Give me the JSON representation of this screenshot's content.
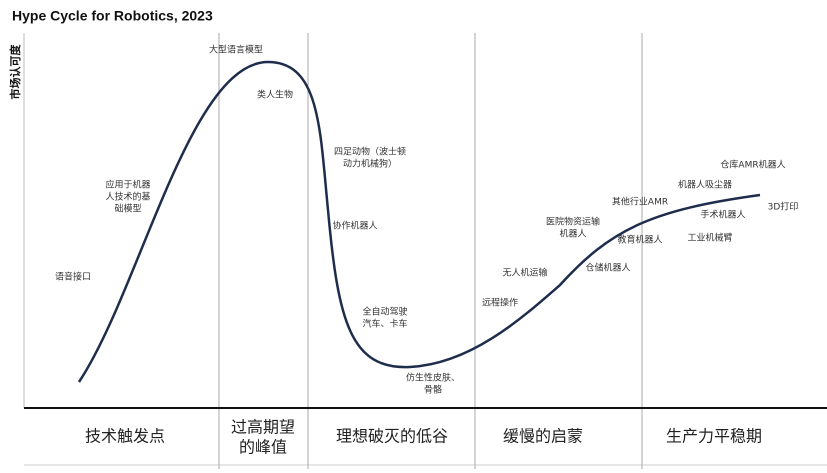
{
  "title": "Hype Cycle for Robotics, 2023",
  "y_axis_label": "市场认可度",
  "phases": [
    {
      "lines": [
        "技术触发点"
      ]
    },
    {
      "lines": [
        "过高期望",
        "的峰值"
      ]
    },
    {
      "lines": [
        "理想破灭的低谷"
      ]
    },
    {
      "lines": [
        "缓慢的启蒙"
      ]
    },
    {
      "lines": [
        "生产力平稳期"
      ]
    }
  ],
  "annotations": [
    {
      "lines": [
        "大型语言模型"
      ]
    },
    {
      "lines": [
        "类人生物"
      ]
    },
    {
      "lines": [
        "应用于机器",
        "人技术的基",
        "础模型"
      ]
    },
    {
      "lines": [
        "语音接口"
      ]
    },
    {
      "lines": [
        "四足动物（波士顿",
        "动力机械狗）"
      ]
    },
    {
      "lines": [
        "协作机器人"
      ]
    },
    {
      "lines": [
        "全自动驾驶",
        "汽车、卡车"
      ]
    },
    {
      "lines": [
        "仿生性皮肤、",
        "骨骼"
      ]
    },
    {
      "lines": [
        "远程操作"
      ]
    },
    {
      "lines": [
        "无人机运输"
      ]
    },
    {
      "lines": [
        "医院物资运输",
        "机器人"
      ]
    },
    {
      "lines": [
        "仓储机器人"
      ]
    },
    {
      "lines": [
        "教育机器人"
      ]
    },
    {
      "lines": [
        "其他行业AMR"
      ]
    },
    {
      "lines": [
        "机器人吸尘器"
      ]
    },
    {
      "lines": [
        "仓库AMR机器人"
      ]
    },
    {
      "lines": [
        "手术机器人"
      ]
    },
    {
      "lines": [
        "3D打印"
      ]
    },
    {
      "lines": [
        "工业机械臂"
      ]
    }
  ]
}
